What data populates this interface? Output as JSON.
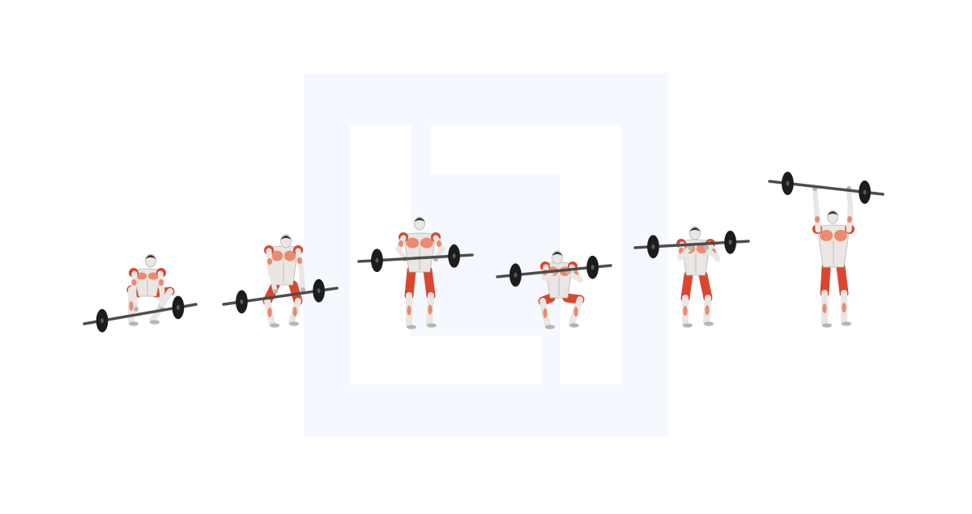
{
  "scene": {
    "background_color": "#ffffff",
    "watermark": {
      "icon": "square-logo-watermark",
      "color": "#f5f9ff",
      "inner_color": "#ffffff"
    },
    "palette": {
      "muscle": "#d9472f",
      "muscle_light": "#ea8a70",
      "skin": "#e9e6e3",
      "skin_shade": "#b9b4b0",
      "hair": "#3a3634",
      "bar": "#4d4d4d",
      "plate": "#1c1c1c"
    },
    "phases": [
      {
        "name": "start-position",
        "icon": "lifter-setup-icon"
      },
      {
        "name": "first-pull",
        "icon": "lifter-first-pull-icon"
      },
      {
        "name": "second-pull",
        "icon": "lifter-second-pull-icon"
      },
      {
        "name": "catch-squat",
        "icon": "lifter-front-squat-icon"
      },
      {
        "name": "recovery",
        "icon": "lifter-recovery-icon"
      },
      {
        "name": "overhead-lockout",
        "icon": "lifter-overhead-icon"
      }
    ]
  }
}
